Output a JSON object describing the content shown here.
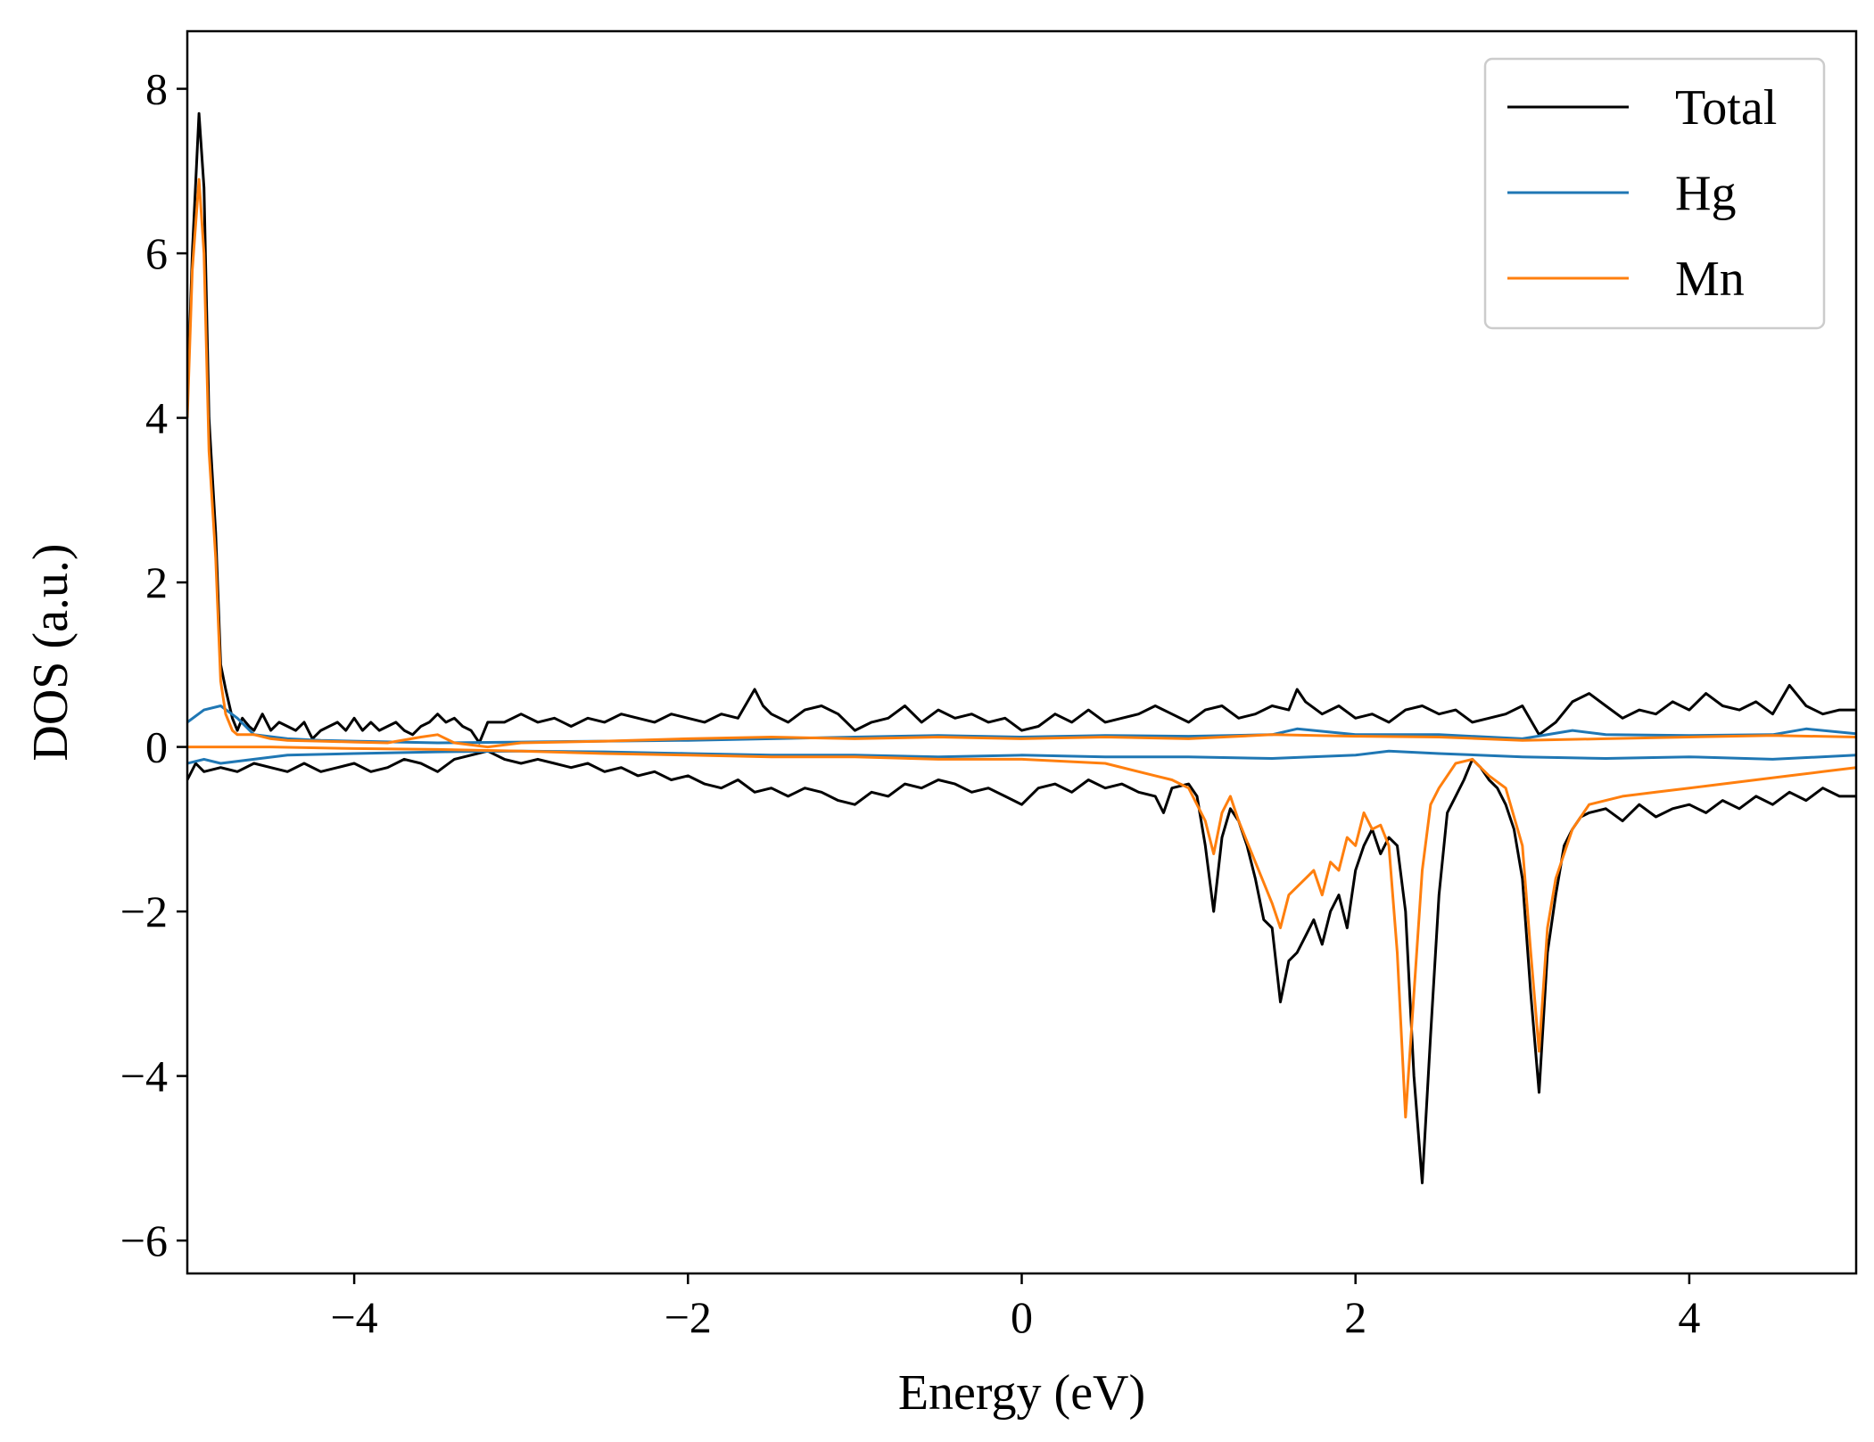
{
  "chart_data": {
    "type": "line",
    "title": "",
    "xlabel": "Energy (eV)",
    "ylabel": "DOS (a.u.)",
    "xlim": [
      -5,
      5
    ],
    "ylim": [
      -6.4,
      8.7
    ],
    "xticks": [
      -4,
      -2,
      0,
      2,
      4
    ],
    "xtick_labels": [
      "−4",
      "−2",
      "0",
      "2",
      "4"
    ],
    "yticks": [
      -6,
      -4,
      -2,
      0,
      2,
      4,
      6,
      8
    ],
    "ytick_labels": [
      "−6",
      "−4",
      "−2",
      "0",
      "2",
      "4",
      "6",
      "8"
    ],
    "grid": false,
    "legend_position": "top-right",
    "series": [
      {
        "name": "Total",
        "color": "#000000",
        "x": [
          -5.0,
          -4.97,
          -4.93,
          -4.9,
          -4.87,
          -4.83,
          -4.8,
          -4.77,
          -4.73,
          -4.7,
          -4.67,
          -4.63,
          -4.6,
          -4.55,
          -4.5,
          -4.45,
          -4.4,
          -4.35,
          -4.3,
          -4.25,
          -4.2,
          -4.15,
          -4.1,
          -4.05,
          -4.0,
          -3.95,
          -3.9,
          -3.85,
          -3.8,
          -3.75,
          -3.7,
          -3.65,
          -3.6,
          -3.55,
          -3.5,
          -3.45,
          -3.4,
          -3.35,
          -3.3,
          -3.25,
          -3.2,
          -3.1,
          -3.0,
          -2.9,
          -2.8,
          -2.7,
          -2.6,
          -2.5,
          -2.4,
          -2.3,
          -2.2,
          -2.1,
          -2.0,
          -1.9,
          -1.8,
          -1.7,
          -1.6,
          -1.55,
          -1.5,
          -1.4,
          -1.3,
          -1.2,
          -1.1,
          -1.0,
          -0.9,
          -0.8,
          -0.7,
          -0.6,
          -0.5,
          -0.4,
          -0.3,
          -0.2,
          -0.1,
          0.0,
          0.1,
          0.2,
          0.3,
          0.4,
          0.5,
          0.6,
          0.7,
          0.8,
          0.9,
          1.0,
          1.1,
          1.2,
          1.3,
          1.4,
          1.5,
          1.6,
          1.65,
          1.7,
          1.8,
          1.9,
          2.0,
          2.1,
          2.2,
          2.3,
          2.4,
          2.5,
          2.6,
          2.7,
          2.8,
          2.9,
          3.0,
          3.1,
          3.2,
          3.3,
          3.4,
          3.5,
          3.6,
          3.7,
          3.8,
          3.9,
          4.0,
          4.1,
          4.2,
          4.3,
          4.4,
          4.5,
          4.6,
          4.7,
          4.8,
          4.9,
          5.0
        ],
        "y": [
          4.2,
          6.0,
          7.7,
          6.8,
          4.0,
          2.6,
          1.0,
          0.7,
          0.35,
          0.2,
          0.35,
          0.25,
          0.2,
          0.4,
          0.2,
          0.3,
          0.25,
          0.2,
          0.3,
          0.1,
          0.2,
          0.25,
          0.3,
          0.2,
          0.35,
          0.2,
          0.3,
          0.2,
          0.25,
          0.3,
          0.2,
          0.15,
          0.25,
          0.3,
          0.4,
          0.3,
          0.35,
          0.25,
          0.2,
          0.05,
          0.3,
          0.3,
          0.4,
          0.3,
          0.35,
          0.25,
          0.35,
          0.3,
          0.4,
          0.35,
          0.3,
          0.4,
          0.35,
          0.3,
          0.4,
          0.35,
          0.7,
          0.5,
          0.4,
          0.3,
          0.45,
          0.5,
          0.4,
          0.2,
          0.3,
          0.35,
          0.5,
          0.3,
          0.45,
          0.35,
          0.4,
          0.3,
          0.35,
          0.2,
          0.25,
          0.4,
          0.3,
          0.45,
          0.3,
          0.35,
          0.4,
          0.5,
          0.4,
          0.3,
          0.45,
          0.5,
          0.35,
          0.4,
          0.5,
          0.45,
          0.7,
          0.55,
          0.4,
          0.5,
          0.35,
          0.4,
          0.3,
          0.45,
          0.5,
          0.4,
          0.45,
          0.3,
          0.35,
          0.4,
          0.5,
          0.15,
          0.3,
          0.55,
          0.65,
          0.5,
          0.35,
          0.45,
          0.4,
          0.55,
          0.45,
          0.65,
          0.5,
          0.45,
          0.55,
          0.4,
          0.75,
          0.5,
          0.4,
          0.45,
          0.45
        ]
      },
      {
        "name": "Total",
        "color": "#000000",
        "x": [
          -5.0,
          -4.95,
          -4.9,
          -4.8,
          -4.7,
          -4.6,
          -4.5,
          -4.4,
          -4.3,
          -4.2,
          -4.1,
          -4.0,
          -3.9,
          -3.8,
          -3.7,
          -3.6,
          -3.5,
          -3.4,
          -3.3,
          -3.2,
          -3.1,
          -3.0,
          -2.9,
          -2.8,
          -2.7,
          -2.6,
          -2.5,
          -2.4,
          -2.3,
          -2.2,
          -2.1,
          -2.0,
          -1.9,
          -1.8,
          -1.7,
          -1.6,
          -1.5,
          -1.4,
          -1.3,
          -1.2,
          -1.1,
          -1.0,
          -0.9,
          -0.8,
          -0.7,
          -0.6,
          -0.5,
          -0.4,
          -0.3,
          -0.2,
          -0.1,
          0.0,
          0.1,
          0.2,
          0.3,
          0.4,
          0.5,
          0.6,
          0.7,
          0.8,
          0.85,
          0.9,
          1.0,
          1.05,
          1.1,
          1.15,
          1.2,
          1.25,
          1.3,
          1.35,
          1.4,
          1.45,
          1.5,
          1.55,
          1.6,
          1.65,
          1.7,
          1.75,
          1.8,
          1.85,
          1.9,
          1.95,
          2.0,
          2.05,
          2.1,
          2.15,
          2.2,
          2.25,
          2.3,
          2.35,
          2.4,
          2.45,
          2.5,
          2.55,
          2.6,
          2.65,
          2.7,
          2.75,
          2.8,
          2.85,
          2.9,
          2.95,
          3.0,
          3.05,
          3.1,
          3.15,
          3.2,
          3.25,
          3.3,
          3.35,
          3.4,
          3.5,
          3.6,
          3.7,
          3.8,
          3.9,
          4.0,
          4.1,
          4.2,
          4.3,
          4.4,
          4.5,
          4.6,
          4.7,
          4.8,
          4.9,
          5.0
        ],
        "y": [
          -0.4,
          -0.2,
          -0.3,
          -0.25,
          -0.3,
          -0.2,
          -0.25,
          -0.3,
          -0.2,
          -0.3,
          -0.25,
          -0.2,
          -0.3,
          -0.25,
          -0.15,
          -0.2,
          -0.3,
          -0.15,
          -0.1,
          -0.05,
          -0.15,
          -0.2,
          -0.15,
          -0.2,
          -0.25,
          -0.2,
          -0.3,
          -0.25,
          -0.35,
          -0.3,
          -0.4,
          -0.35,
          -0.45,
          -0.5,
          -0.4,
          -0.55,
          -0.5,
          -0.6,
          -0.5,
          -0.55,
          -0.65,
          -0.7,
          -0.55,
          -0.6,
          -0.45,
          -0.5,
          -0.4,
          -0.45,
          -0.55,
          -0.5,
          -0.6,
          -0.7,
          -0.5,
          -0.45,
          -0.55,
          -0.4,
          -0.5,
          -0.45,
          -0.55,
          -0.6,
          -0.8,
          -0.5,
          -0.45,
          -0.6,
          -1.2,
          -2.0,
          -1.1,
          -0.75,
          -0.9,
          -1.2,
          -1.6,
          -2.1,
          -2.2,
          -3.1,
          -2.6,
          -2.5,
          -2.3,
          -2.1,
          -2.4,
          -2.0,
          -1.8,
          -2.2,
          -1.5,
          -1.2,
          -1.0,
          -1.3,
          -1.1,
          -1.2,
          -2.0,
          -4.0,
          -5.3,
          -3.5,
          -1.8,
          -0.8,
          -0.6,
          -0.4,
          -0.15,
          -0.25,
          -0.4,
          -0.5,
          -0.7,
          -1.0,
          -1.6,
          -3.0,
          -4.2,
          -2.5,
          -1.8,
          -1.2,
          -1.0,
          -0.85,
          -0.8,
          -0.75,
          -0.9,
          -0.7,
          -0.85,
          -0.75,
          -0.7,
          -0.8,
          -0.65,
          -0.75,
          -0.6,
          -0.7,
          -0.55,
          -0.65,
          -0.5,
          -0.6,
          -0.6
        ]
      },
      {
        "name": "Hg",
        "color": "#1f77b4",
        "x": [
          -5.0,
          -4.9,
          -4.8,
          -4.7,
          -4.6,
          -4.4,
          -4.2,
          -4.0,
          -3.5,
          -3.0,
          -2.5,
          -2.0,
          -1.5,
          -1.0,
          -0.5,
          0.0,
          0.5,
          1.0,
          1.5,
          1.65,
          2.0,
          2.5,
          3.0,
          3.3,
          3.5,
          4.0,
          4.5,
          4.7,
          5.0
        ],
        "y": [
          0.3,
          0.45,
          0.5,
          0.35,
          0.15,
          0.1,
          0.08,
          0.07,
          0.05,
          0.06,
          0.07,
          0.08,
          0.1,
          0.12,
          0.14,
          0.12,
          0.14,
          0.13,
          0.15,
          0.22,
          0.15,
          0.15,
          0.1,
          0.2,
          0.15,
          0.14,
          0.15,
          0.22,
          0.16
        ]
      },
      {
        "name": "Hg",
        "color": "#1f77b4",
        "x": [
          -5.0,
          -4.9,
          -4.8,
          -4.6,
          -4.4,
          -4.0,
          -3.5,
          -3.0,
          -2.5,
          -2.0,
          -1.5,
          -1.0,
          -0.5,
          0.0,
          0.5,
          1.0,
          1.5,
          2.0,
          2.2,
          2.5,
          3.0,
          3.5,
          4.0,
          4.5,
          5.0
        ],
        "y": [
          -0.2,
          -0.15,
          -0.2,
          -0.15,
          -0.1,
          -0.08,
          -0.06,
          -0.05,
          -0.06,
          -0.08,
          -0.1,
          -0.1,
          -0.12,
          -0.1,
          -0.12,
          -0.12,
          -0.14,
          -0.1,
          -0.05,
          -0.08,
          -0.12,
          -0.14,
          -0.12,
          -0.15,
          -0.1
        ]
      },
      {
        "name": "Mn",
        "color": "#ff7f0e",
        "x": [
          -5.0,
          -4.97,
          -4.93,
          -4.9,
          -4.87,
          -4.83,
          -4.8,
          -4.77,
          -4.73,
          -4.7,
          -4.6,
          -4.5,
          -4.4,
          -4.2,
          -4.0,
          -3.8,
          -3.6,
          -3.5,
          -3.4,
          -3.2,
          -3.0,
          -2.5,
          -2.0,
          -1.5,
          -1.0,
          -0.5,
          0.0,
          0.5,
          1.0,
          1.5,
          2.0,
          2.5,
          3.0,
          3.5,
          4.0,
          4.5,
          5.0
        ],
        "y": [
          4.0,
          5.8,
          6.9,
          6.0,
          3.6,
          2.3,
          0.8,
          0.4,
          0.2,
          0.15,
          0.15,
          0.1,
          0.08,
          0.07,
          0.06,
          0.05,
          0.12,
          0.15,
          0.05,
          0.0,
          0.05,
          0.07,
          0.1,
          0.12,
          0.1,
          0.12,
          0.1,
          0.12,
          0.1,
          0.15,
          0.13,
          0.12,
          0.08,
          0.1,
          0.12,
          0.14,
          0.12
        ]
      },
      {
        "name": "Mn",
        "color": "#ff7f0e",
        "x": [
          -5.0,
          -4.5,
          -4.0,
          -3.5,
          -3.0,
          -2.5,
          -2.0,
          -1.5,
          -1.0,
          -0.5,
          0.0,
          0.5,
          0.8,
          0.9,
          1.0,
          1.1,
          1.15,
          1.2,
          1.25,
          1.3,
          1.4,
          1.5,
          1.55,
          1.6,
          1.7,
          1.75,
          1.8,
          1.85,
          1.9,
          1.95,
          2.0,
          2.05,
          2.1,
          2.15,
          2.2,
          2.25,
          2.3,
          2.35,
          2.4,
          2.45,
          2.5,
          2.6,
          2.7,
          2.8,
          2.9,
          3.0,
          3.05,
          3.1,
          3.15,
          3.2,
          3.3,
          3.4,
          3.5,
          3.6,
          3.8,
          4.0,
          4.2,
          4.4,
          4.6,
          4.8,
          5.0
        ],
        "y": [
          0.0,
          0.0,
          -0.02,
          -0.03,
          -0.05,
          -0.08,
          -0.1,
          -0.12,
          -0.12,
          -0.15,
          -0.15,
          -0.2,
          -0.35,
          -0.4,
          -0.5,
          -0.9,
          -1.3,
          -0.8,
          -0.6,
          -0.9,
          -1.4,
          -1.9,
          -2.2,
          -1.8,
          -1.6,
          -1.5,
          -1.8,
          -1.4,
          -1.5,
          -1.1,
          -1.2,
          -0.8,
          -1.0,
          -0.95,
          -1.2,
          -2.5,
          -4.5,
          -3.0,
          -1.5,
          -0.7,
          -0.5,
          -0.2,
          -0.15,
          -0.35,
          -0.5,
          -1.2,
          -2.5,
          -3.7,
          -2.2,
          -1.6,
          -1.0,
          -0.7,
          -0.65,
          -0.6,
          -0.55,
          -0.5,
          -0.45,
          -0.4,
          -0.35,
          -0.3,
          -0.25
        ]
      }
    ]
  }
}
